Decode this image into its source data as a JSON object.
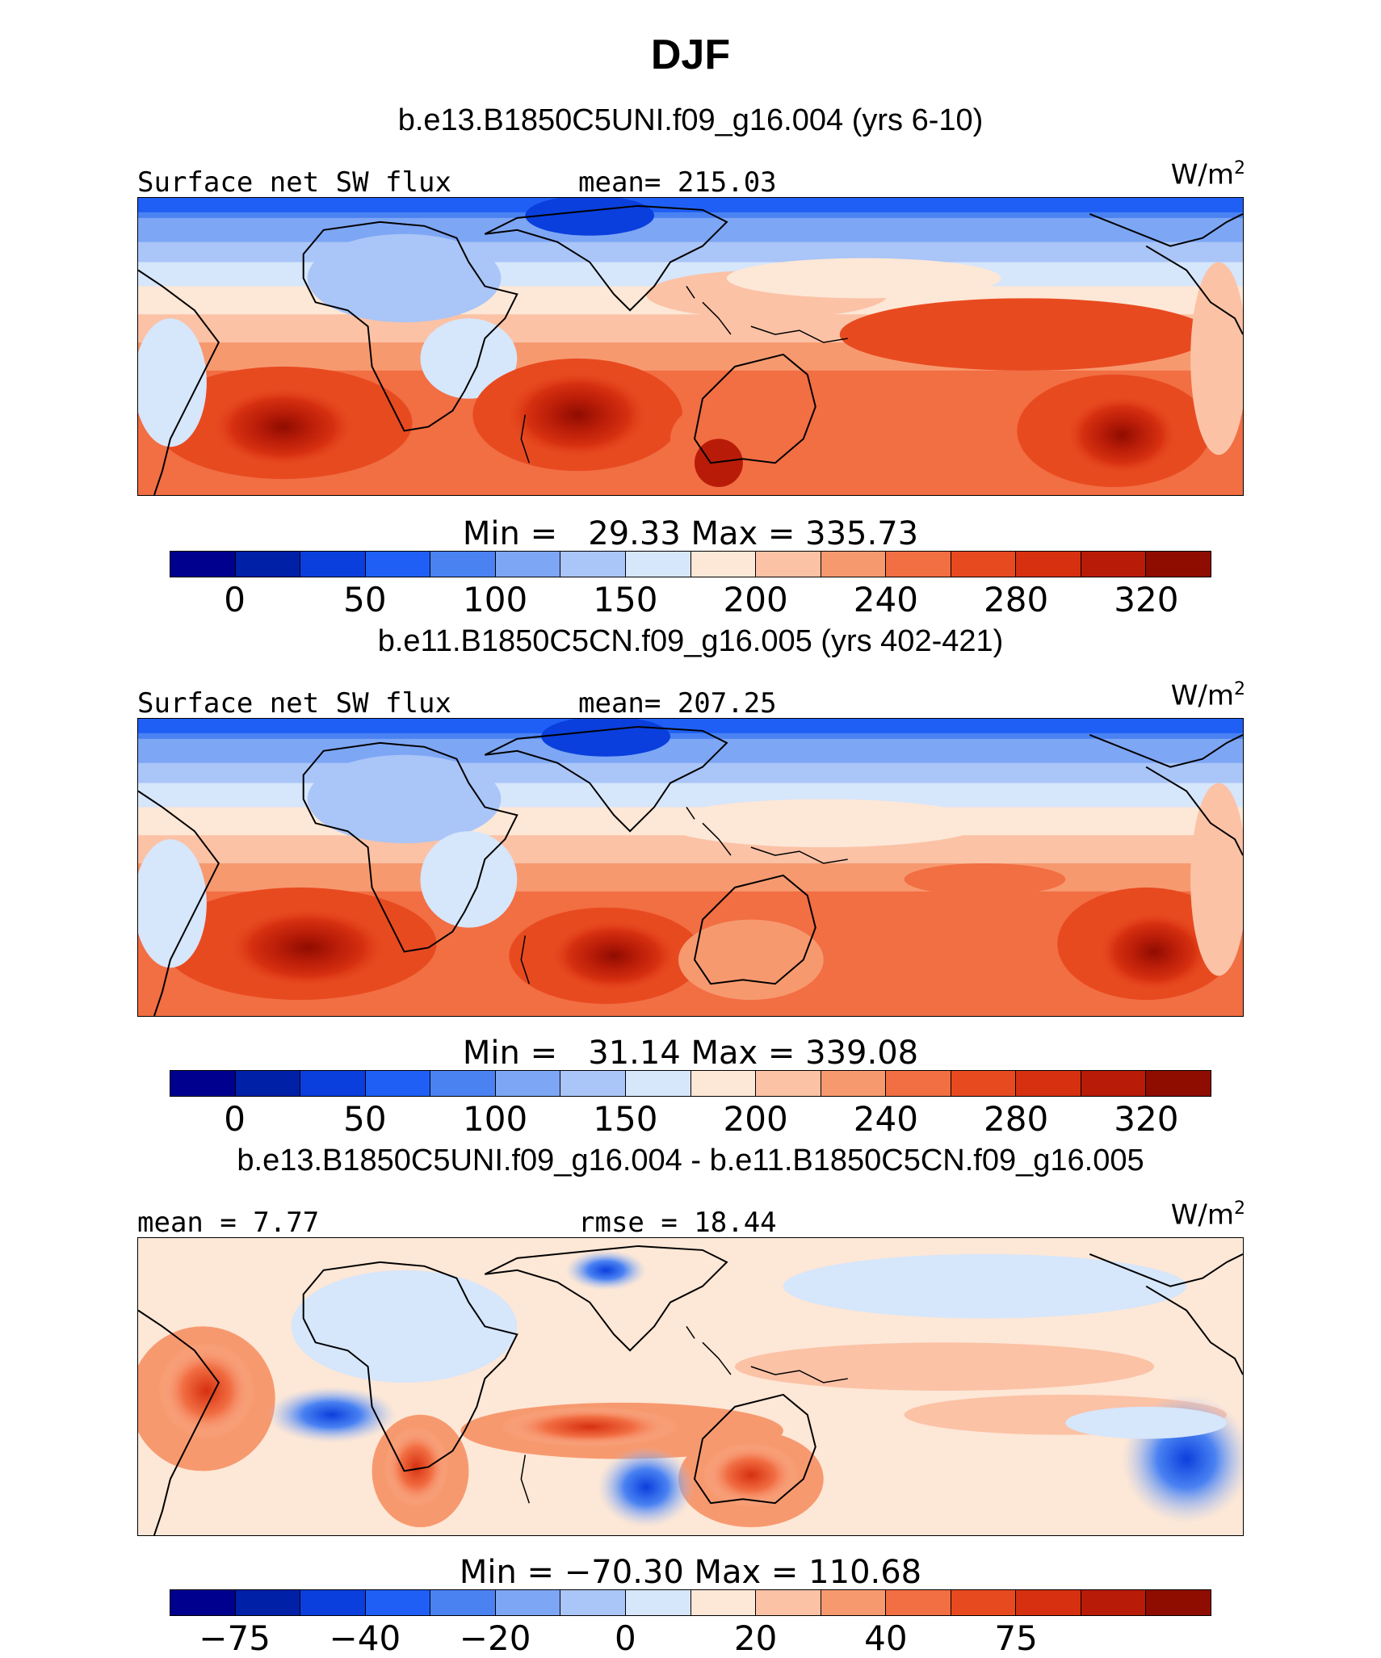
{
  "title": "DJF",
  "colors": {
    "abs": [
      "#00008f",
      "#0020a8",
      "#0a3fdd",
      "#1f5ff5",
      "#4a82f2",
      "#7da6f5",
      "#aac5f7",
      "#d6e6fb",
      "#fde7d6",
      "#fbc2a6",
      "#f7996f",
      "#f26e43",
      "#e84a20",
      "#d63010",
      "#b81c08",
      "#8f0c00"
    ],
    "diff": [
      "#00008f",
      "#0020a8",
      "#0a3fdd",
      "#1f5ff5",
      "#4a82f2",
      "#7da6f5",
      "#aac5f7",
      "#d6e6fb",
      "#fde7d6",
      "#fbc2a6",
      "#f7996f",
      "#f26e43",
      "#e84a20",
      "#d63010",
      "#b81c08",
      "#8f0c00"
    ]
  },
  "panels": [
    {
      "subtitle": "b.e13.B1850C5UNI.f09_g16.004 (yrs 6-10)",
      "left_label": "Surface net SW flux",
      "center_label": "mean= 215.03",
      "units_base": "W/m",
      "units_exp": "2",
      "minmax": "Min =   29.33 Max = 335.73",
      "cb_ticks": [
        "0",
        "50",
        "100",
        "150",
        "200",
        "240",
        "280",
        "320"
      ],
      "palette": "abs"
    },
    {
      "subtitle": "b.e11.B1850C5CN.f09_g16.005 (yrs 402-421)",
      "left_label": "Surface net SW flux",
      "center_label": "mean= 207.25",
      "units_base": "W/m",
      "units_exp": "2",
      "minmax": "Min =   31.14 Max = 339.08",
      "cb_ticks": [
        "0",
        "50",
        "100",
        "150",
        "200",
        "240",
        "280",
        "320"
      ],
      "palette": "abs"
    },
    {
      "subtitle": "b.e13.B1850C5UNI.f09_g16.004 - b.e11.B1850C5CN.f09_g16.005",
      "left_label": "mean =   7.77",
      "center_label": "rmse =  18.44",
      "units_base": "W/m",
      "units_exp": "2",
      "minmax": "Min = −70.30 Max = 110.68",
      "cb_ticks": [
        "−75",
        "−40",
        "−20",
        "0",
        "20",
        "40",
        "75"
      ],
      "palette": "diff"
    }
  ]
}
